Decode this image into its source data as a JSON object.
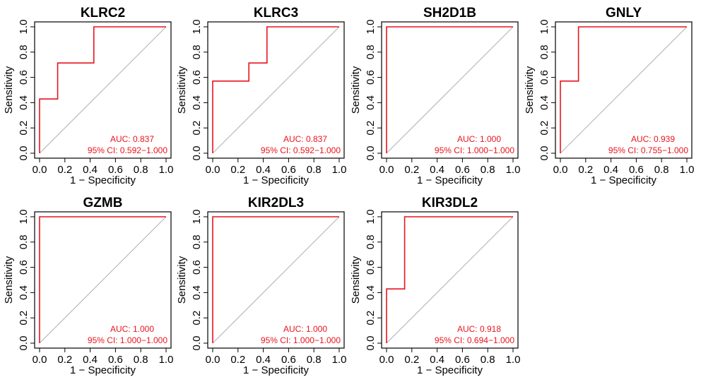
{
  "chart_data": [
    {
      "type": "line",
      "title": "KLRC2",
      "xlabel": "1 − Specificity",
      "ylabel": "Sensitivity",
      "xlim": [
        0,
        1
      ],
      "ylim": [
        0,
        1
      ],
      "xticks": [
        "0.0",
        "0.2",
        "0.4",
        "0.6",
        "0.8",
        "1.0"
      ],
      "yticks": [
        "0.0",
        "0.2",
        "0.4",
        "0.6",
        "0.8",
        "1.0"
      ],
      "x": [
        0,
        0,
        0.143,
        0.143,
        0.429,
        0.429,
        1
      ],
      "y": [
        0,
        0.429,
        0.429,
        0.714,
        0.714,
        1,
        1
      ],
      "auc_text": "AUC: 0.837",
      "ci_text": "95% CI: 0.592−1.000",
      "curve_color": "#e8141d",
      "reference_color": "#b0b0b0"
    },
    {
      "type": "line",
      "title": "KLRC3",
      "xlabel": "1 − Specificity",
      "ylabel": "Sensitivity",
      "xlim": [
        0,
        1
      ],
      "ylim": [
        0,
        1
      ],
      "xticks": [
        "0.0",
        "0.2",
        "0.4",
        "0.6",
        "0.8",
        "1.0"
      ],
      "yticks": [
        "0.0",
        "0.2",
        "0.4",
        "0.6",
        "0.8",
        "1.0"
      ],
      "x": [
        0,
        0,
        0.286,
        0.286,
        0.429,
        0.429,
        1
      ],
      "y": [
        0,
        0.571,
        0.571,
        0.714,
        0.714,
        1,
        1
      ],
      "auc_text": "AUC: 0.837",
      "ci_text": "95% CI: 0.592−1.000",
      "curve_color": "#e8141d",
      "reference_color": "#b0b0b0"
    },
    {
      "type": "line",
      "title": "SH2D1B",
      "xlabel": "1 − Specificity",
      "ylabel": "Sensitivity",
      "xlim": [
        0,
        1
      ],
      "ylim": [
        0,
        1
      ],
      "xticks": [
        "0.0",
        "0.2",
        "0.4",
        "0.6",
        "0.8",
        "1.0"
      ],
      "yticks": [
        "0.0",
        "0.2",
        "0.4",
        "0.6",
        "0.8",
        "1.0"
      ],
      "x": [
        0,
        0,
        1
      ],
      "y": [
        0,
        1,
        1
      ],
      "auc_text": "AUC: 1.000",
      "ci_text": "95% CI: 1.000−1.000",
      "curve_color": "#e8141d",
      "reference_color": "#b0b0b0"
    },
    {
      "type": "line",
      "title": "GNLY",
      "xlabel": "1 − Specificity",
      "ylabel": "Sensitivity",
      "xlim": [
        0,
        1
      ],
      "ylim": [
        0,
        1
      ],
      "xticks": [
        "0.0",
        "0.2",
        "0.4",
        "0.6",
        "0.8",
        "1.0"
      ],
      "yticks": [
        "0.0",
        "0.2",
        "0.4",
        "0.6",
        "0.8",
        "1.0"
      ],
      "x": [
        0,
        0,
        0.143,
        0.143,
        1
      ],
      "y": [
        0,
        0.571,
        0.571,
        1,
        1
      ],
      "auc_text": "AUC: 0.939",
      "ci_text": "95% CI: 0.755−1.000",
      "curve_color": "#e8141d",
      "reference_color": "#b0b0b0"
    },
    {
      "type": "line",
      "title": "GZMB",
      "xlabel": "1 − Specificity",
      "ylabel": "Sensitivity",
      "xlim": [
        0,
        1
      ],
      "ylim": [
        0,
        1
      ],
      "xticks": [
        "0.0",
        "0.2",
        "0.4",
        "0.6",
        "0.8",
        "1.0"
      ],
      "yticks": [
        "0.0",
        "0.2",
        "0.4",
        "0.6",
        "0.8",
        "1.0"
      ],
      "x": [
        0,
        0,
        1
      ],
      "y": [
        0,
        1,
        1
      ],
      "auc_text": "AUC: 1.000",
      "ci_text": "95% CI: 1.000−1.000",
      "curve_color": "#e8141d",
      "reference_color": "#b0b0b0"
    },
    {
      "type": "line",
      "title": "KIR2DL3",
      "xlabel": "1 − Specificity",
      "ylabel": "Sensitivity",
      "xlim": [
        0,
        1
      ],
      "ylim": [
        0,
        1
      ],
      "xticks": [
        "0.0",
        "0.2",
        "0.4",
        "0.6",
        "0.8",
        "1.0"
      ],
      "yticks": [
        "0.0",
        "0.2",
        "0.4",
        "0.6",
        "0.8",
        "1.0"
      ],
      "x": [
        0,
        0,
        1
      ],
      "y": [
        0,
        1,
        1
      ],
      "auc_text": "AUC: 1.000",
      "ci_text": "95% CI: 1.000−1.000",
      "curve_color": "#e8141d",
      "reference_color": "#b0b0b0"
    },
    {
      "type": "line",
      "title": "KIR3DL2",
      "xlabel": "1 − Specificity",
      "ylabel": "Sensitivity",
      "xlim": [
        0,
        1
      ],
      "ylim": [
        0,
        1
      ],
      "xticks": [
        "0.0",
        "0.2",
        "0.4",
        "0.6",
        "0.8",
        "1.0"
      ],
      "yticks": [
        "0.0",
        "0.2",
        "0.4",
        "0.6",
        "0.8",
        "1.0"
      ],
      "x": [
        0,
        0,
        0.143,
        0.143,
        1
      ],
      "y": [
        0,
        0.429,
        0.429,
        1,
        1
      ],
      "auc_text": "AUC: 0.918",
      "ci_text": "95% CI: 0.694−1.000",
      "curve_color": "#e8141d",
      "reference_color": "#b0b0b0"
    }
  ]
}
